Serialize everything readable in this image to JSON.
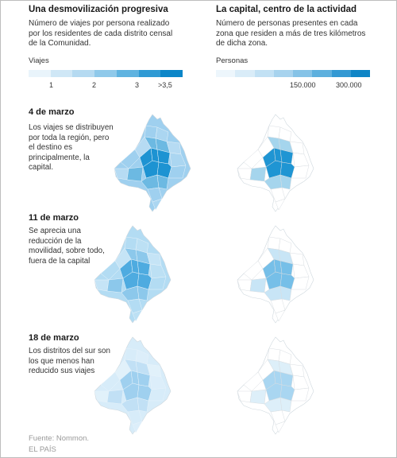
{
  "left_column": {
    "title": "Una desmovilización progresiva",
    "subtitle": "Número de viajes por persona realizado por los residentes de cada distrito censal de la Comunidad.",
    "legend": {
      "title": "Viajes",
      "colors": [
        "#e9f4fb",
        "#cfe7f6",
        "#b5daf1",
        "#8fc9ea",
        "#5fb3e0",
        "#2f9ad4",
        "#0c86c8"
      ],
      "ticks": [
        "1",
        "2",
        "3",
        ">3,5"
      ]
    }
  },
  "right_column": {
    "title": "La capital, centro de la actividad",
    "subtitle": "Número de personas presentes en cada zona que residen a más de tres kilómetros de dicha zona.",
    "legend": {
      "title": "Personas",
      "colors": [
        "#edf6fc",
        "#d9ecf8",
        "#c2e1f4",
        "#a7d3ee",
        "#85c3e7",
        "#5db0de",
        "#3399d3",
        "#0f85c6"
      ],
      "ticks": [
        "150.000",
        "300.000"
      ]
    }
  },
  "sections": [
    {
      "date": "4 de marzo",
      "text": "Los viajes se distribuyen por toda la región, pero el destino es principalmente, la capital.",
      "map_left": {
        "fill": "#9fd0ef",
        "core": "#1d93d2",
        "core_level": 0.9
      },
      "map_right": {
        "fill": "#ffffff",
        "core": "#1f95d3",
        "core_level": 0.55
      }
    },
    {
      "date": "11 de marzo",
      "text": "Se aprecia una reducción de la movilidad, sobre todo, fuera de la capital",
      "map_left": {
        "fill": "#b3dcf3",
        "core": "#4eabe0",
        "core_level": 0.7
      },
      "map_right": {
        "fill": "#ffffff",
        "core": "#76bfe8",
        "core_level": 0.35
      }
    },
    {
      "date": "18 de marzo",
      "text": "Los distritos del sur son los que menos han reducido sus viajes",
      "map_left": {
        "fill": "#d7ecf9",
        "core": "#9fd0ef",
        "core_level": 0.45
      },
      "map_right": {
        "fill": "#ffffff",
        "core": "#a9d6f1",
        "core_level": 0.25
      }
    }
  ],
  "source": "Fuente: Nommon.",
  "credit": "EL PAÍS"
}
